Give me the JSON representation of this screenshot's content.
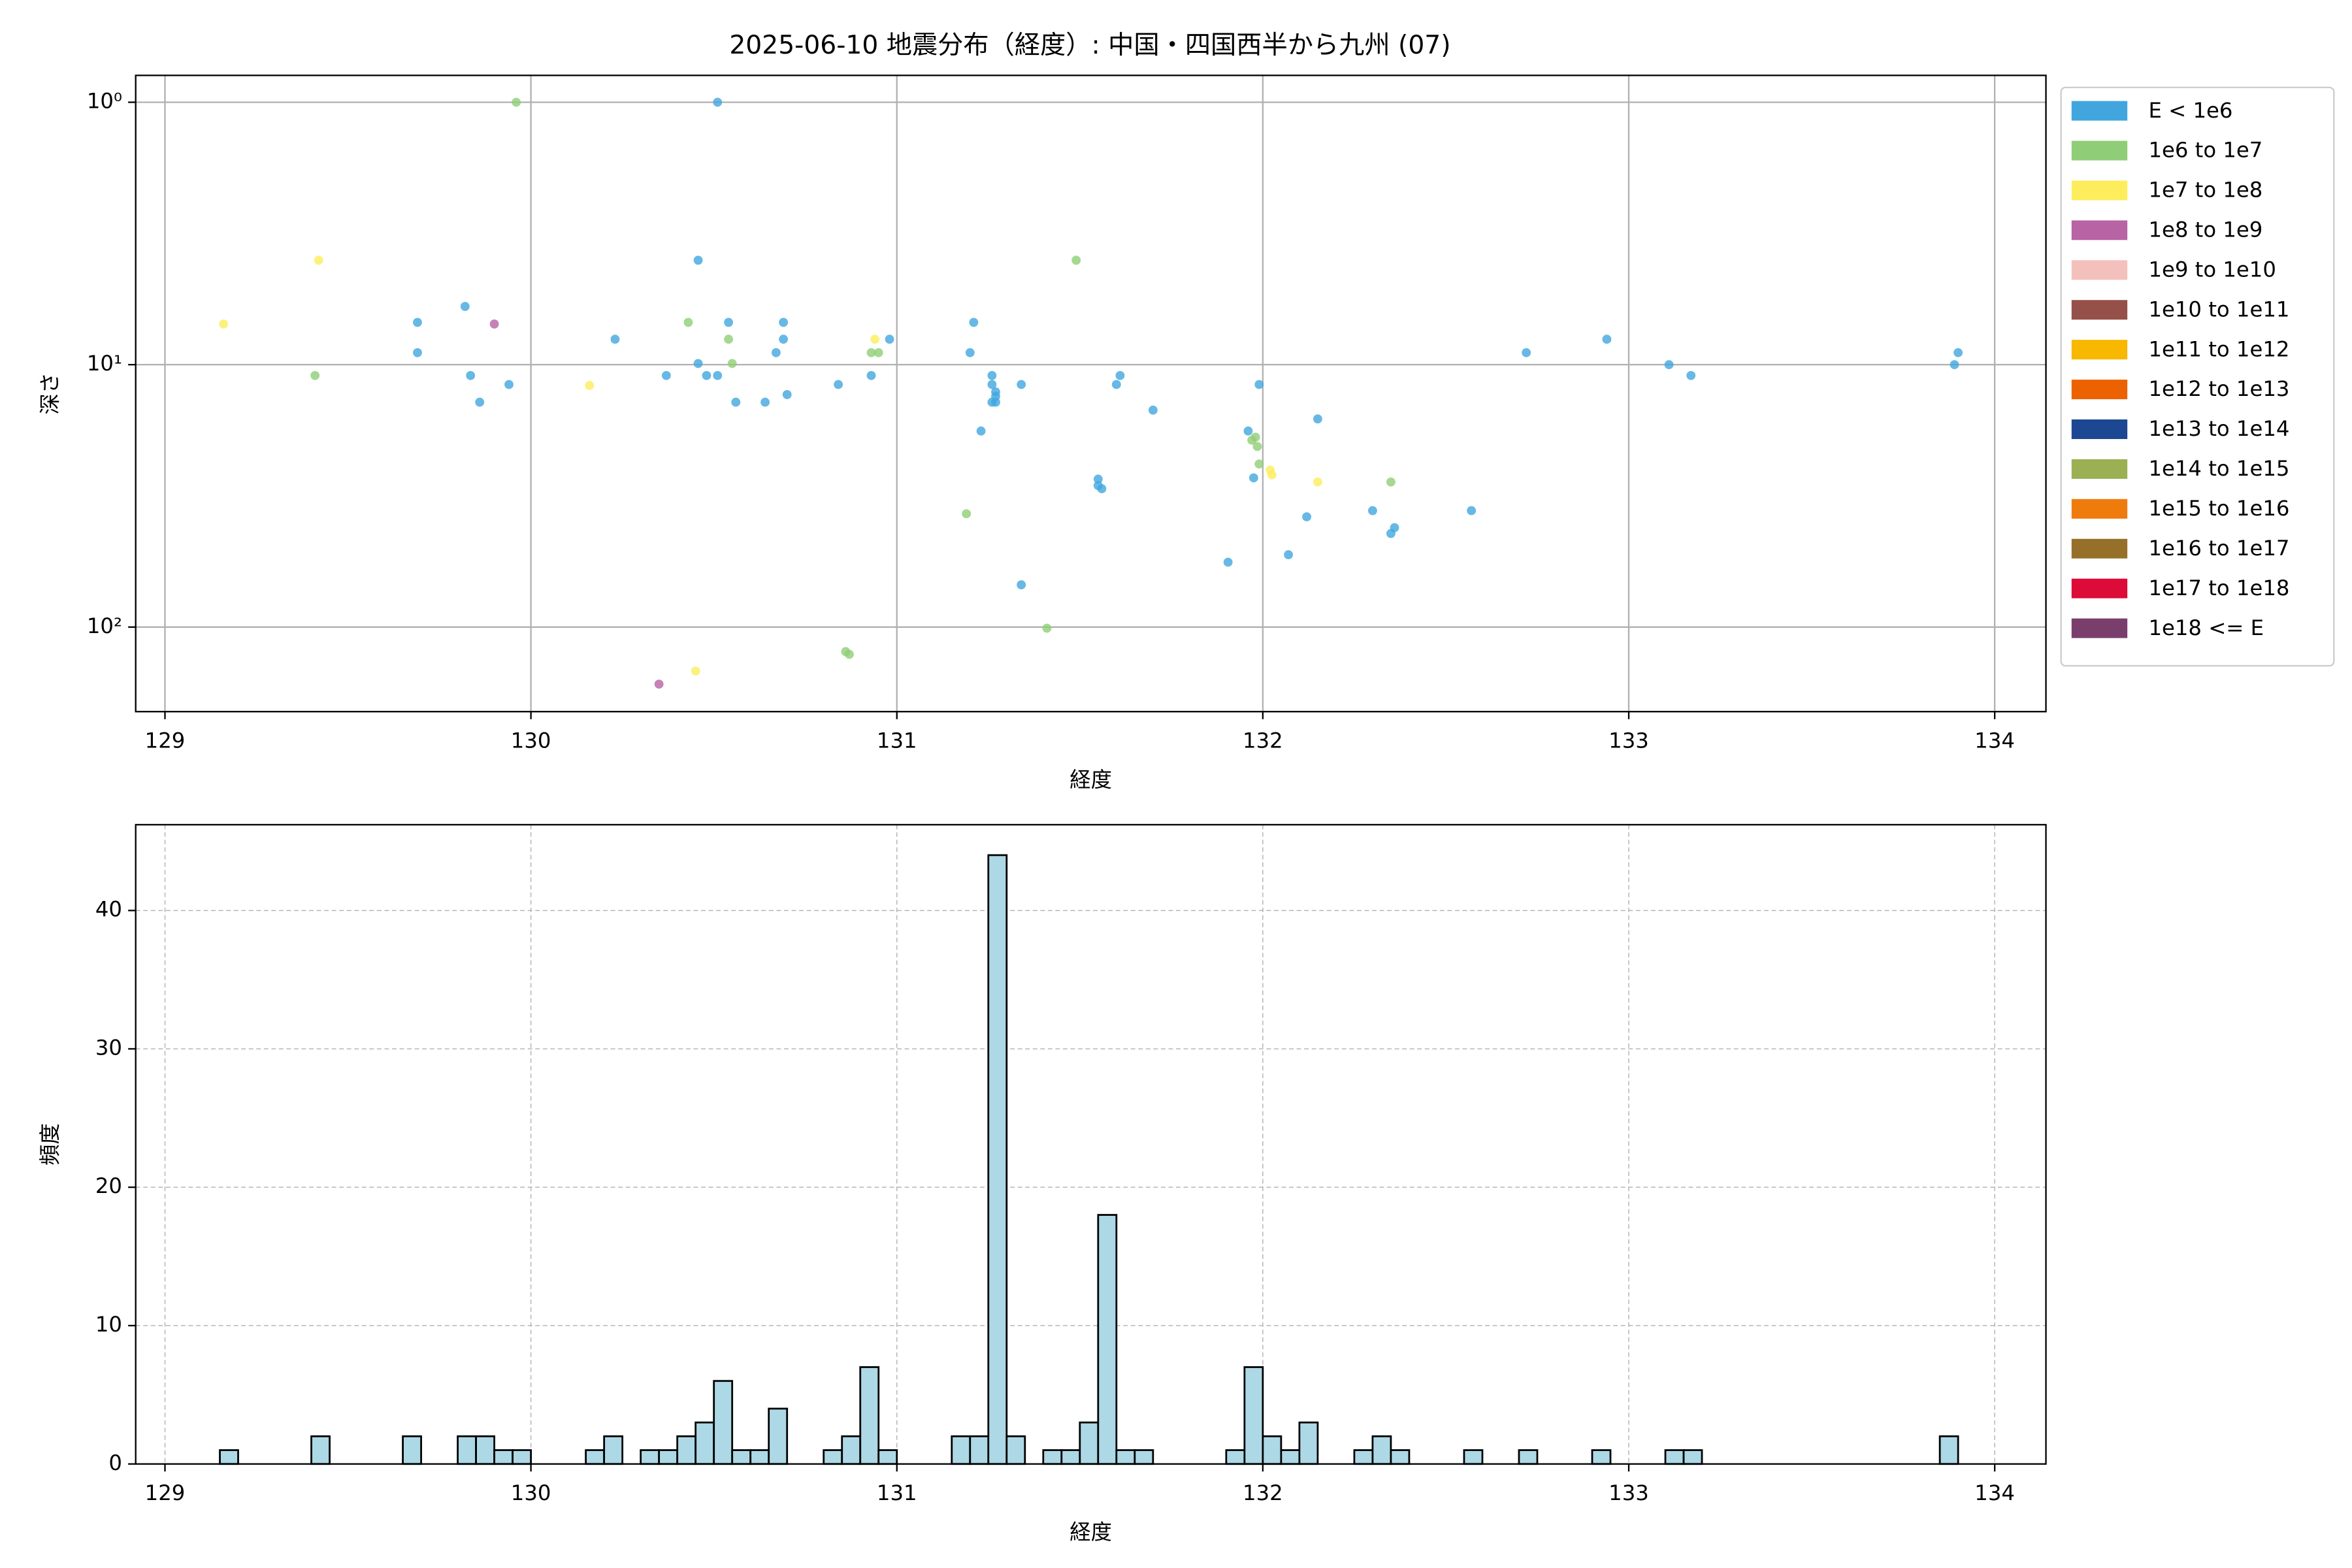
{
  "chart_data": [
    {
      "type": "scatter",
      "title": "2025-06-10 地震分布（経度）: 中国・四国西半から九州 (07)",
      "xlabel": "経度",
      "ylabel": "深さ",
      "xlim": [
        128.92,
        134.14
      ],
      "ylim": [
        0.79,
        210
      ],
      "yscale": "log",
      "y_inverted": true,
      "xticks": [
        129,
        130,
        131,
        132,
        133,
        134
      ],
      "yticks": [
        {
          "value": 1,
          "label": "10⁰"
        },
        {
          "value": 10,
          "label": "10¹"
        },
        {
          "value": 100,
          "label": "10²"
        }
      ],
      "grid": true,
      "legend": "outside right",
      "series": [
        {
          "name": "E < 1e6",
          "color": "#41a6de",
          "x": [
            130.51,
            130.457,
            129.82,
            129.69,
            129.69,
            129.835,
            129.86,
            129.94,
            130.23,
            130.37,
            130.457,
            130.48,
            130.51,
            130.54,
            130.56,
            130.64,
            130.67,
            130.69,
            130.69,
            130.7,
            130.84,
            130.93,
            130.98,
            131.2,
            131.21,
            131.23,
            131.26,
            131.26,
            131.27,
            131.27,
            131.27,
            131.26,
            131.34,
            131.34,
            131.55,
            131.55,
            131.56,
            131.6,
            131.61,
            131.7,
            131.905,
            131.96,
            131.99,
            131.975,
            132.07,
            132.12,
            132.15,
            132.3,
            132.35,
            132.36,
            132.57,
            132.72,
            132.94,
            133.11,
            133.17,
            133.89,
            133.9
          ],
          "values": [
            1,
            4.0,
            6.0,
            6.9,
            9.0,
            11,
            13.9,
            11.9,
            8.0,
            11,
            9.9,
            11,
            11,
            6.9,
            13.9,
            13.9,
            9.0,
            6.9,
            8.0,
            13,
            11.9,
            11,
            8.0,
            9.0,
            6.9,
            17.9,
            11,
            11.9,
            12.7,
            13.2,
            13.9,
            13.9,
            11.9,
            69,
            27.3,
            28.9,
            29.7,
            11.9,
            11,
            14.9,
            56.6,
            17.9,
            11.9,
            27,
            53,
            38,
            16.1,
            36,
            44,
            41.8,
            36,
            9.0,
            8.0,
            10,
            11,
            10,
            9.0
          ]
        },
        {
          "name": "1e6 to 1e7",
          "color": "#8fce76",
          "x": [
            129.96,
            129.41,
            130.43,
            130.54,
            130.55,
            130.93,
            130.95,
            131.19,
            131.49,
            131.97,
            131.985,
            131.98,
            131.99,
            132.35,
            131.41,
            130.86,
            130.87
          ],
          "values": [
            1,
            11,
            6.9,
            8.0,
            9.9,
            9,
            9,
            37,
            4.0,
            19.4,
            20.5,
            18.9,
            23.9,
            28,
            101,
            124,
            127
          ]
        },
        {
          "name": "1e7 to 1e8",
          "color": "#fded5c",
          "x": [
            129.16,
            129.42,
            130.16,
            130.94,
            132.02,
            132.025,
            132.15,
            130.45
          ],
          "values": [
            7.0,
            4.0,
            12,
            8.0,
            25.2,
            26.3,
            28,
            147
          ]
        },
        {
          "name": "1e8 to 1e9",
          "color": "#b863a4",
          "x": [
            129.9,
            130.35
          ],
          "values": [
            7.0,
            165
          ]
        },
        {
          "name": "1e9 to 1e10",
          "color": "#f4c0bb",
          "x": [],
          "values": []
        },
        {
          "name": "1e10 to 1e11",
          "color": "#955049",
          "x": [],
          "values": []
        },
        {
          "name": "1e11 to 1e12",
          "color": "#f8b800",
          "x": [],
          "values": []
        },
        {
          "name": "1e12 to 1e13",
          "color": "#ec6201",
          "x": [],
          "values": []
        },
        {
          "name": "1e13 to 1e14",
          "color": "#1c4792",
          "x": [],
          "values": []
        },
        {
          "name": "1e14 to 1e15",
          "color": "#9bb052",
          "x": [],
          "values": []
        },
        {
          "name": "1e15 to 1e16",
          "color": "#f07b0d",
          "x": [],
          "values": []
        },
        {
          "name": "1e16 to 1e17",
          "color": "#967028",
          "x": [],
          "values": []
        },
        {
          "name": "1e17 to 1e18",
          "color": "#dc0b37",
          "x": [],
          "values": []
        },
        {
          "name": "1e18 <= E",
          "color": "#7a3e6d",
          "x": [],
          "values": []
        }
      ]
    },
    {
      "type": "histogram",
      "xlabel": "経度",
      "ylabel": "頻度",
      "xlim": [
        128.92,
        134.14
      ],
      "ylim": [
        0,
        46.2
      ],
      "xticks": [
        129,
        130,
        131,
        132,
        133,
        134
      ],
      "yticks": [
        0,
        10,
        20,
        30,
        40
      ],
      "grid": "dashed",
      "color": "#add8e6",
      "edgecolor": "#000000",
      "bins": [
        129.15,
        129.2,
        129.25,
        129.3,
        129.35,
        129.4,
        129.45,
        129.5,
        129.55,
        129.6,
        129.65,
        129.7,
        129.75,
        129.8,
        129.85,
        129.9,
        129.95,
        130.0,
        130.05,
        130.1,
        130.15,
        130.2,
        130.25,
        130.3,
        130.35,
        130.4,
        130.45,
        130.5,
        130.55,
        130.6,
        130.65,
        130.7,
        130.75,
        130.8,
        130.85,
        130.9,
        130.95,
        131.0,
        131.05,
        131.1,
        131.15,
        131.2,
        131.25,
        131.3,
        131.35,
        131.4,
        131.45,
        131.5,
        131.55,
        131.6,
        131.65,
        131.7,
        131.75,
        131.8,
        131.85,
        131.9,
        131.95,
        132.0,
        132.05,
        132.1,
        132.15,
        132.2,
        132.25,
        132.3,
        132.35,
        132.4,
        132.45,
        132.5,
        132.55,
        132.6,
        132.65,
        132.7,
        132.75,
        132.8,
        132.85,
        132.9,
        132.95,
        133.0,
        133.05,
        133.1,
        133.15,
        133.2,
        133.25,
        133.3,
        133.35,
        133.4,
        133.45,
        133.5,
        133.55,
        133.6,
        133.65,
        133.7,
        133.75,
        133.8,
        133.85,
        133.9
      ],
      "counts": [
        1,
        0,
        0,
        0,
        0,
        2,
        0,
        0,
        0,
        0,
        2,
        0,
        0,
        2,
        2,
        1,
        1,
        0,
        0,
        0,
        1,
        2,
        0,
        1,
        1,
        2,
        3,
        6,
        1,
        1,
        4,
        0,
        0,
        1,
        2,
        7,
        1,
        0,
        0,
        0,
        2,
        2,
        44,
        2,
        0,
        1,
        1,
        3,
        18,
        1,
        1,
        0,
        0,
        0,
        0,
        1,
        7,
        2,
        1,
        3,
        0,
        0,
        1,
        2,
        1,
        0,
        0,
        0,
        1,
        0,
        0,
        1,
        0,
        0,
        0,
        1,
        0,
        0,
        0,
        1,
        1,
        0,
        0,
        0,
        0,
        0,
        0,
        0,
        0,
        0,
        0,
        0,
        0,
        0,
        2
      ]
    }
  ]
}
